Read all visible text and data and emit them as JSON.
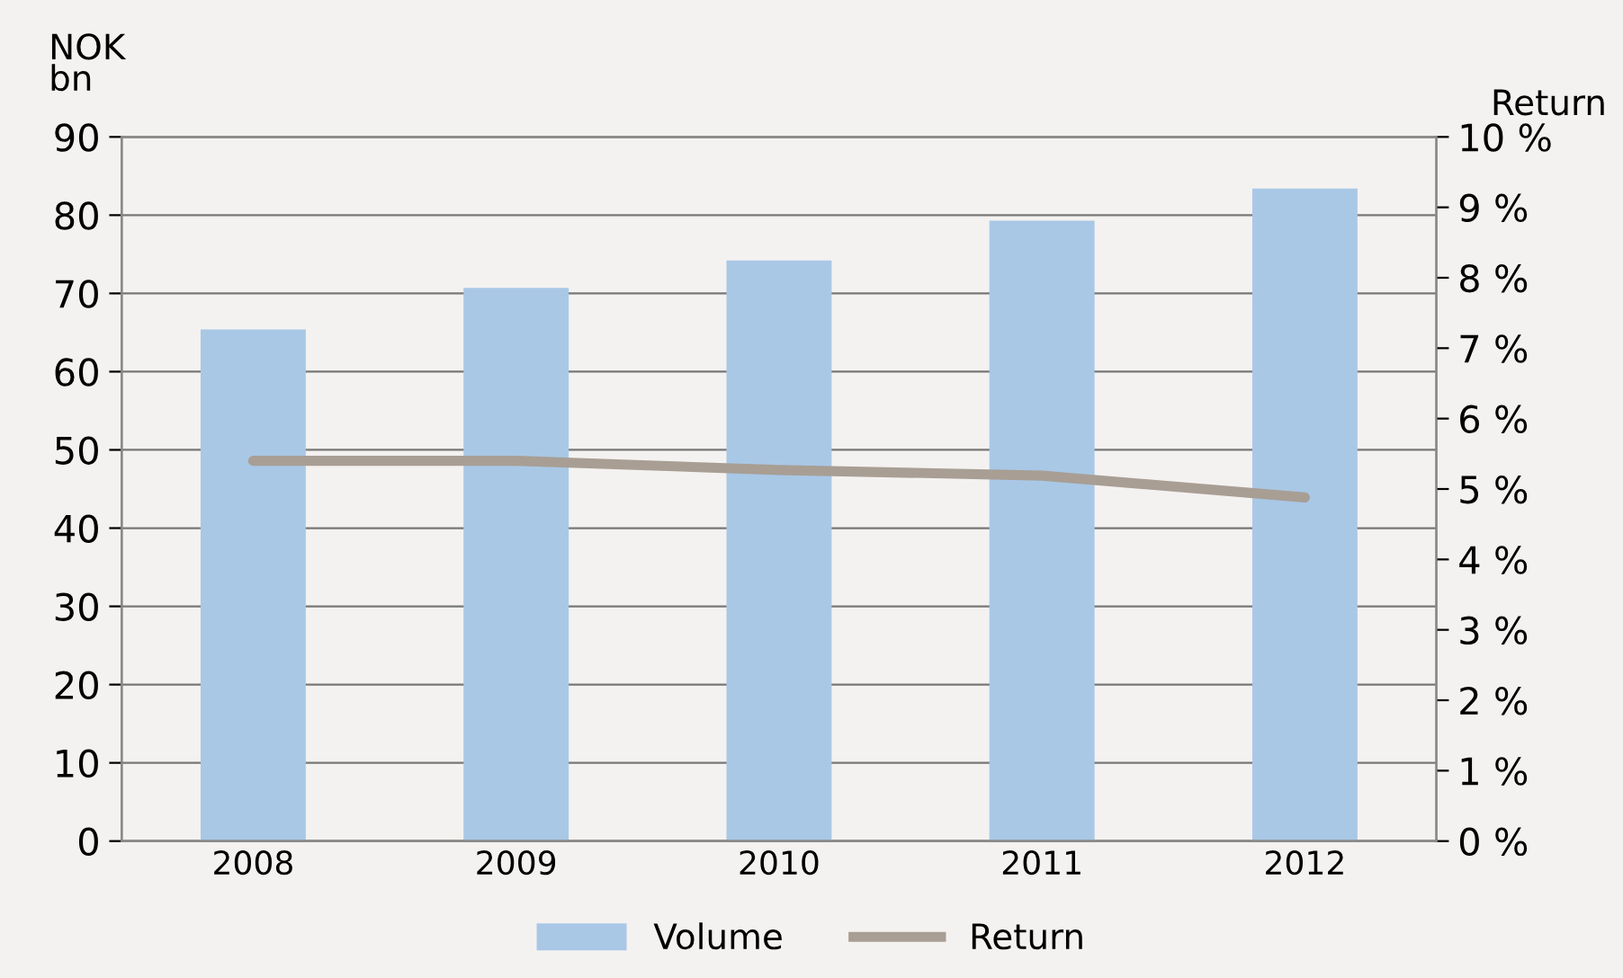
{
  "chart_data": {
    "type": "bar",
    "ylabel": "NOK\nbn",
    "y2label": "Return",
    "categories": [
      "2008",
      "2009",
      "2010",
      "2011",
      "2012"
    ],
    "series": [
      {
        "name": "Volume",
        "color": "#a9c8e6",
        "values": [
          65.4,
          70.7,
          74.2,
          79.3,
          83.4
        ]
      },
      {
        "name": "Return",
        "type": "line",
        "axis": "y2",
        "color": "#a89e94",
        "values": [
          5.4,
          5.4,
          5.27,
          5.19,
          4.88
        ]
      }
    ],
    "ylim": [
      0,
      90
    ],
    "yticks": [
      0,
      10,
      20,
      30,
      40,
      50,
      60,
      70,
      80,
      90
    ],
    "y2lim": [
      0,
      10
    ],
    "y2ticks": [
      {
        "value": 0,
        "label": "0 %"
      },
      {
        "value": 1,
        "label": "1 %"
      },
      {
        "value": 2,
        "label": "2 %"
      },
      {
        "value": 3,
        "label": "3 %"
      },
      {
        "value": 4,
        "label": "4 %"
      },
      {
        "value": 5,
        "label": "5 %"
      },
      {
        "value": 6,
        "label": "6 %"
      },
      {
        "value": 7,
        "label": "7 %"
      },
      {
        "value": 8,
        "label": "8 %"
      },
      {
        "value": 9,
        "label": "9 %"
      },
      {
        "value": 10,
        "label": "10 %"
      }
    ],
    "grid": "y",
    "legend": "bottom",
    "marker": "none",
    "line_style": "solid"
  }
}
